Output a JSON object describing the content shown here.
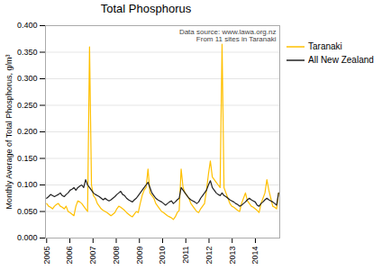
{
  "chart_data": {
    "type": "line",
    "title": "Total Phosphorus",
    "ylabel": "Monthly Average of Total Phosphorus, g/m³",
    "annotation": "Data source: www.lawa.org.nz\nFrom 11 sites in Taranaki",
    "x": [
      2005,
      2005.084,
      2005.1681,
      2005.2521,
      2005.3361,
      2005.4202,
      2005.5042,
      2005.5882,
      2005.6723,
      2005.7563,
      2005.8403,
      2005.9244,
      2006.0084,
      2006.0924,
      2006.1765,
      2006.2605,
      2006.3445,
      2006.4286,
      2006.5126,
      2006.5966,
      2006.6807,
      2006.7647,
      2006.8487,
      2006.9328,
      2007.0168,
      2007.1008,
      2007.1849,
      2007.2689,
      2007.3529,
      2007.437,
      2007.521,
      2007.605,
      2007.6891,
      2007.7731,
      2007.8571,
      2007.9412,
      2008.0252,
      2008.1092,
      2008.1933,
      2008.2773,
      2008.3613,
      2008.4454,
      2008.5294,
      2008.6134,
      2008.6975,
      2008.7815,
      2008.8655,
      2008.9496,
      2009.0336,
      2009.1176,
      2009.2017,
      2009.2857,
      2009.3697,
      2009.4538,
      2009.5378,
      2009.6218,
      2009.7059,
      2009.7899,
      2009.8739,
      2009.958,
      2010.042,
      2010.1261,
      2010.2101,
      2010.2941,
      2010.3782,
      2010.4622,
      2010.5462,
      2010.6303,
      2010.7143,
      2010.7983,
      2010.8824,
      2010.9664,
      2011.0504,
      2011.1345,
      2011.2185,
      2011.3025,
      2011.3866,
      2011.4706,
      2011.5546,
      2011.6387,
      2011.7227,
      2011.8067,
      2011.8908,
      2011.9748,
      2012.0588,
      2012.1429,
      2012.2269,
      2012.3109,
      2012.395,
      2012.479,
      2012.563,
      2012.6471,
      2012.7311,
      2012.8151,
      2012.8992,
      2012.9832,
      2013.0672,
      2013.1513,
      2013.2353,
      2013.3193,
      2013.4034,
      2013.4874,
      2013.5714,
      2013.6555,
      2013.7395,
      2013.8235,
      2013.9076,
      2013.9916,
      2014.0756,
      2014.1597,
      2014.2437,
      2014.3277,
      2014.4118,
      2014.4958,
      2014.5798,
      2014.6639,
      2014.7479,
      2014.8319,
      2014.916,
      2015
    ],
    "series": [
      {
        "name": "Taranaki",
        "color": "#FFC000",
        "values": [
          0.065,
          0.06,
          0.058,
          0.055,
          0.06,
          0.063,
          0.065,
          0.06,
          0.058,
          0.055,
          0.06,
          0.05,
          0.048,
          0.045,
          0.042,
          0.06,
          0.07,
          0.068,
          0.065,
          0.06,
          0.055,
          0.05,
          0.36,
          0.1,
          0.08,
          0.075,
          0.065,
          0.06,
          0.055,
          0.052,
          0.05,
          0.048,
          0.045,
          0.042,
          0.045,
          0.048,
          0.055,
          0.06,
          0.058,
          0.055,
          0.052,
          0.048,
          0.045,
          0.042,
          0.04,
          0.045,
          0.05,
          0.048,
          0.065,
          0.08,
          0.09,
          0.095,
          0.13,
          0.085,
          0.08,
          0.075,
          0.065,
          0.06,
          0.055,
          0.05,
          0.048,
          0.045,
          0.042,
          0.04,
          0.038,
          0.035,
          0.04,
          0.048,
          0.052,
          0.13,
          0.095,
          0.085,
          0.08,
          0.075,
          0.065,
          0.06,
          0.055,
          0.05,
          0.048,
          0.055,
          0.06,
          0.065,
          0.09,
          0.12,
          0.145,
          0.115,
          0.11,
          0.105,
          0.1,
          0.095,
          0.365,
          0.095,
          0.085,
          0.075,
          0.065,
          0.06,
          0.058,
          0.055,
          0.052,
          0.05,
          0.065,
          0.075,
          0.085,
          0.07,
          0.065,
          0.06,
          0.058,
          0.055,
          0.052,
          0.048,
          0.065,
          0.075,
          0.085,
          0.11,
          0.09,
          0.075,
          0.06,
          0.058,
          0.055,
          0.085
        ]
      },
      {
        "name": "All New Zealand",
        "color": "#222222",
        "values": [
          0.075,
          0.078,
          0.082,
          0.08,
          0.078,
          0.08,
          0.082,
          0.085,
          0.08,
          0.078,
          0.082,
          0.085,
          0.09,
          0.092,
          0.095,
          0.09,
          0.095,
          0.098,
          0.1,
          0.095,
          0.11,
          0.1,
          0.095,
          0.09,
          0.085,
          0.082,
          0.08,
          0.078,
          0.075,
          0.072,
          0.075,
          0.072,
          0.07,
          0.072,
          0.075,
          0.078,
          0.082,
          0.085,
          0.088,
          0.082,
          0.08,
          0.075,
          0.072,
          0.07,
          0.068,
          0.072,
          0.075,
          0.08,
          0.085,
          0.09,
          0.095,
          0.1,
          0.105,
          0.095,
          0.085,
          0.08,
          0.075,
          0.072,
          0.07,
          0.068,
          0.065,
          0.062,
          0.065,
          0.068,
          0.07,
          0.065,
          0.068,
          0.072,
          0.075,
          0.095,
          0.09,
          0.085,
          0.08,
          0.075,
          0.072,
          0.07,
          0.068,
          0.065,
          0.068,
          0.075,
          0.08,
          0.085,
          0.09,
          0.1,
          0.108,
          0.095,
          0.09,
          0.085,
          0.082,
          0.08,
          0.085,
          0.08,
          0.078,
          0.075,
          0.072,
          0.07,
          0.068,
          0.065,
          0.063,
          0.06,
          0.062,
          0.065,
          0.068,
          0.072,
          0.075,
          0.072,
          0.07,
          0.068,
          0.062,
          0.06,
          0.065,
          0.068,
          0.072,
          0.075,
          0.072,
          0.07,
          0.068,
          0.065,
          0.062,
          0.085
        ]
      }
    ],
    "xlim": [
      2004.95,
      2015.05
    ],
    "xticks": [
      2005,
      2006,
      2007,
      2008,
      2009,
      2010,
      2011,
      2012,
      2013,
      2014
    ],
    "ylim": [
      0.0,
      0.4
    ],
    "yticks": [
      {
        "value": 0.0,
        "label": "0.000"
      },
      {
        "value": 0.05,
        "label": "0.050"
      },
      {
        "value": 0.1,
        "label": "0.100"
      },
      {
        "value": 0.15,
        "label": "0.150"
      },
      {
        "value": 0.2,
        "label": "0.200"
      },
      {
        "value": 0.25,
        "label": "0.250"
      },
      {
        "value": 0.3,
        "label": "0.300"
      },
      {
        "value": 0.35,
        "label": "0.350"
      },
      {
        "value": 0.4,
        "label": "0.400"
      }
    ],
    "grid": true,
    "legend": "right"
  }
}
